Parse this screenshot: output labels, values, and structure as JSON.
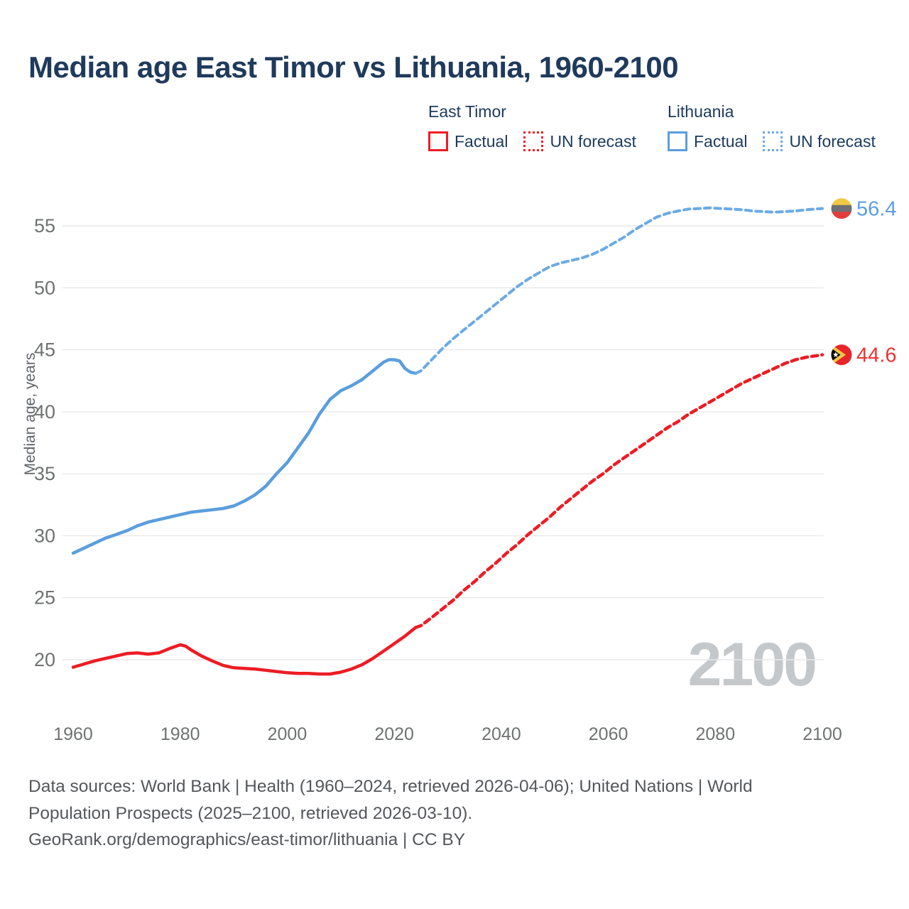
{
  "title": "Median age East Timor vs Lithuania, 1960-2100",
  "legend": {
    "groups": [
      {
        "header": "East Timor",
        "items": [
          {
            "label": "Factual",
            "style": "solid",
            "color": "#ed1c24"
          },
          {
            "label": "UN forecast",
            "style": "dotted",
            "color": "#ed1c24"
          }
        ]
      },
      {
        "header": "Lithuania",
        "items": [
          {
            "label": "Factual",
            "style": "solid",
            "color": "#5a9edd"
          },
          {
            "label": "UN forecast",
            "style": "dotted",
            "color": "#6aaae6"
          }
        ]
      }
    ]
  },
  "watermark": "2100",
  "footer": {
    "line1": "Data sources: World Bank | Health (1960–2024, retrieved 2026-04-06); United Nations | World",
    "line2": "Population Prospects (2025–2100, retrieved 2026-03-10).",
    "line3": "GeoRank.org/demographics/east-timor/lithuania | CC BY"
  },
  "chart_data": {
    "type": "line",
    "title": "Median age East Timor vs Lithuania, 1960-2100",
    "xlabel": "",
    "ylabel": "Median age, years",
    "xlim": [
      1960,
      2100
    ],
    "ylim": [
      17.5,
      58.5
    ],
    "grid": true,
    "legend_position": "top-right",
    "x_ticks": [
      1960,
      1980,
      2000,
      2020,
      2040,
      2060,
      2080,
      2100
    ],
    "y_ticks": [
      20,
      25,
      30,
      35,
      40,
      45,
      50,
      55
    ],
    "colors": {
      "east_timor": "#ed1c24",
      "lithuania": "#5a9edd",
      "lithuania_forecast": "#6aaae6",
      "grid": "#e9e9eb",
      "tick_text": "#6e7271",
      "title_text": "#1f3a5c",
      "watermark": "#c5c8cb"
    },
    "series": [
      {
        "name": "Lithuania Factual",
        "style": "solid",
        "color": "#5a9edd",
        "width": 4.5,
        "points": [
          [
            1960,
            28.6
          ],
          [
            1962,
            29.0
          ],
          [
            1964,
            29.4
          ],
          [
            1966,
            29.8
          ],
          [
            1968,
            30.1
          ],
          [
            1970,
            30.4
          ],
          [
            1972,
            30.8
          ],
          [
            1974,
            31.1
          ],
          [
            1976,
            31.3
          ],
          [
            1978,
            31.5
          ],
          [
            1980,
            31.7
          ],
          [
            1982,
            31.9
          ],
          [
            1984,
            32.0
          ],
          [
            1986,
            32.1
          ],
          [
            1988,
            32.2
          ],
          [
            1990,
            32.4
          ],
          [
            1992,
            32.8
          ],
          [
            1994,
            33.3
          ],
          [
            1996,
            34.0
          ],
          [
            1998,
            35.0
          ],
          [
            2000,
            35.9
          ],
          [
            2002,
            37.1
          ],
          [
            2004,
            38.3
          ],
          [
            2006,
            39.8
          ],
          [
            2008,
            41.0
          ],
          [
            2010,
            41.7
          ],
          [
            2012,
            42.1
          ],
          [
            2014,
            42.6
          ],
          [
            2016,
            43.3
          ],
          [
            2018,
            44.0
          ],
          [
            2019,
            44.2
          ],
          [
            2020,
            44.2
          ],
          [
            2021,
            44.1
          ],
          [
            2022,
            43.5
          ],
          [
            2023,
            43.2
          ],
          [
            2024,
            43.1
          ]
        ]
      },
      {
        "name": "Lithuania UN forecast",
        "style": "dashed",
        "color": "#6aaae6",
        "width": 4,
        "points": [
          [
            2024,
            43.1
          ],
          [
            2025,
            43.3
          ],
          [
            2027,
            44.2
          ],
          [
            2029,
            45.1
          ],
          [
            2031,
            45.9
          ],
          [
            2033,
            46.6
          ],
          [
            2035,
            47.3
          ],
          [
            2037,
            48.0
          ],
          [
            2039,
            48.7
          ],
          [
            2041,
            49.4
          ],
          [
            2043,
            50.1
          ],
          [
            2045,
            50.7
          ],
          [
            2047,
            51.2
          ],
          [
            2049,
            51.7
          ],
          [
            2051,
            52.0
          ],
          [
            2053,
            52.2
          ],
          [
            2055,
            52.4
          ],
          [
            2057,
            52.7
          ],
          [
            2059,
            53.1
          ],
          [
            2061,
            53.6
          ],
          [
            2063,
            54.1
          ],
          [
            2065,
            54.7
          ],
          [
            2067,
            55.2
          ],
          [
            2069,
            55.7
          ],
          [
            2071,
            56.0
          ],
          [
            2073,
            56.2
          ],
          [
            2075,
            56.35
          ],
          [
            2077,
            56.4
          ],
          [
            2079,
            56.45
          ],
          [
            2081,
            56.4
          ],
          [
            2083,
            56.35
          ],
          [
            2085,
            56.3
          ],
          [
            2087,
            56.2
          ],
          [
            2089,
            56.15
          ],
          [
            2091,
            56.1
          ],
          [
            2093,
            56.15
          ],
          [
            2095,
            56.2
          ],
          [
            2097,
            56.3
          ],
          [
            2100,
            56.4
          ]
        ]
      },
      {
        "name": "East Timor Factual",
        "style": "solid",
        "color": "#ed1c24",
        "width": 4.5,
        "points": [
          [
            1960,
            19.4
          ],
          [
            1962,
            19.65
          ],
          [
            1964,
            19.9
          ],
          [
            1966,
            20.1
          ],
          [
            1968,
            20.3
          ],
          [
            1970,
            20.5
          ],
          [
            1972,
            20.55
          ],
          [
            1974,
            20.45
          ],
          [
            1976,
            20.55
          ],
          [
            1978,
            20.9
          ],
          [
            1980,
            21.2
          ],
          [
            1981,
            21.1
          ],
          [
            1982,
            20.8
          ],
          [
            1984,
            20.3
          ],
          [
            1986,
            19.9
          ],
          [
            1988,
            19.55
          ],
          [
            1990,
            19.35
          ],
          [
            1992,
            19.3
          ],
          [
            1994,
            19.25
          ],
          [
            1996,
            19.15
          ],
          [
            1998,
            19.05
          ],
          [
            2000,
            18.95
          ],
          [
            2002,
            18.9
          ],
          [
            2004,
            18.9
          ],
          [
            2006,
            18.85
          ],
          [
            2008,
            18.85
          ],
          [
            2010,
            19.0
          ],
          [
            2012,
            19.25
          ],
          [
            2014,
            19.6
          ],
          [
            2016,
            20.1
          ],
          [
            2018,
            20.7
          ],
          [
            2020,
            21.3
          ],
          [
            2022,
            21.9
          ],
          [
            2024,
            22.6
          ]
        ]
      },
      {
        "name": "East Timor UN forecast",
        "style": "dashed",
        "color": "#ed1c24",
        "width": 4.5,
        "points": [
          [
            2024,
            22.6
          ],
          [
            2025,
            22.75
          ],
          [
            2027,
            23.4
          ],
          [
            2029,
            24.1
          ],
          [
            2031,
            24.8
          ],
          [
            2033,
            25.6
          ],
          [
            2035,
            26.3
          ],
          [
            2037,
            27.1
          ],
          [
            2039,
            27.8
          ],
          [
            2041,
            28.6
          ],
          [
            2043,
            29.3
          ],
          [
            2045,
            30.1
          ],
          [
            2047,
            30.8
          ],
          [
            2049,
            31.5
          ],
          [
            2051,
            32.3
          ],
          [
            2053,
            33.0
          ],
          [
            2055,
            33.7
          ],
          [
            2057,
            34.4
          ],
          [
            2059,
            35.0
          ],
          [
            2061,
            35.7
          ],
          [
            2063,
            36.3
          ],
          [
            2065,
            36.9
          ],
          [
            2067,
            37.5
          ],
          [
            2069,
            38.1
          ],
          [
            2071,
            38.7
          ],
          [
            2073,
            39.2
          ],
          [
            2075,
            39.8
          ],
          [
            2077,
            40.3
          ],
          [
            2079,
            40.8
          ],
          [
            2081,
            41.3
          ],
          [
            2083,
            41.8
          ],
          [
            2085,
            42.3
          ],
          [
            2087,
            42.7
          ],
          [
            2089,
            43.1
          ],
          [
            2091,
            43.5
          ],
          [
            2093,
            43.9
          ],
          [
            2095,
            44.2
          ],
          [
            2097,
            44.4
          ],
          [
            2100,
            44.6
          ]
        ]
      }
    ],
    "end_labels": [
      {
        "series": "Lithuania",
        "value": 56.4,
        "label": "56.4",
        "color": "#5b9fe0",
        "flag": "lithuania"
      },
      {
        "series": "East Timor",
        "value": 44.6,
        "label": "44.6",
        "color": "#ee3333",
        "flag": "east-timor"
      }
    ],
    "flag_colors": {
      "lithuania": {
        "top": "#f3c843",
        "middle": "#6f7072",
        "bottom": "#e23d3d"
      },
      "east_timor": {
        "field": "#e8252a",
        "chevron": "#f3c843",
        "triangle": "#000000",
        "star": "#ffffff"
      }
    }
  }
}
